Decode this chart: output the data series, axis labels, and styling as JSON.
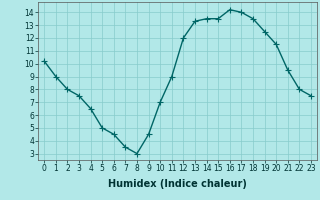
{
  "x": [
    0,
    1,
    2,
    3,
    4,
    5,
    6,
    7,
    8,
    9,
    10,
    11,
    12,
    13,
    14,
    15,
    16,
    17,
    18,
    19,
    20,
    21,
    22,
    23
  ],
  "y": [
    10.2,
    9.0,
    8.0,
    7.5,
    6.5,
    5.0,
    4.5,
    3.5,
    3.0,
    4.5,
    7.0,
    9.0,
    12.0,
    13.3,
    13.5,
    13.5,
    14.2,
    14.0,
    13.5,
    12.5,
    11.5,
    9.5,
    8.0,
    7.5
  ],
  "line_color": "#006666",
  "bg_color": "#b2e8e8",
  "grid_color": "#88cccc",
  "xlabel": "Humidex (Indice chaleur)",
  "xlabel_fontsize": 7,
  "xlim": [
    -0.5,
    23.5
  ],
  "ylim": [
    2.5,
    14.8
  ],
  "yticks": [
    3,
    4,
    5,
    6,
    7,
    8,
    9,
    10,
    11,
    12,
    13,
    14
  ],
  "xticks": [
    0,
    1,
    2,
    3,
    4,
    5,
    6,
    7,
    8,
    9,
    10,
    11,
    12,
    13,
    14,
    15,
    16,
    17,
    18,
    19,
    20,
    21,
    22,
    23
  ],
  "tick_fontsize": 5.5,
  "linewidth": 1.0,
  "markersize": 4.0,
  "markeredgewidth": 0.8
}
